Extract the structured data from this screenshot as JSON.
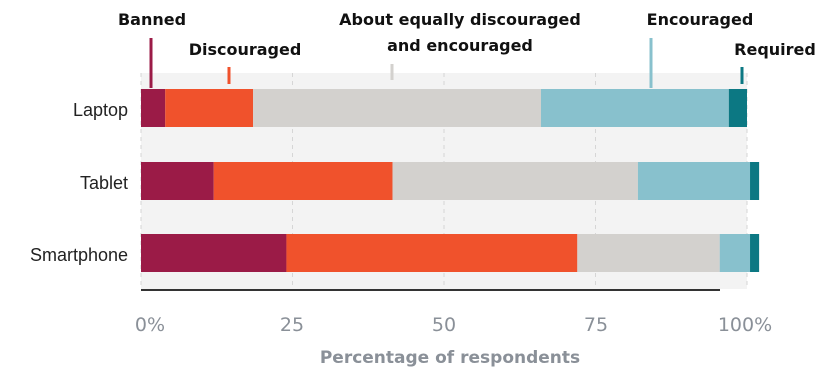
{
  "chart_data": {
    "type": "bar",
    "orientation": "horizontal",
    "stacked": true,
    "categories": [
      "Laptop",
      "Tablet",
      "Smartphone"
    ],
    "series": [
      {
        "name": "Banned",
        "color": "#9b1b47",
        "values": [
          4,
          12,
          24
        ]
      },
      {
        "name": "Discouraged",
        "color": "#f0522c",
        "values": [
          14.5,
          29.5,
          48
        ]
      },
      {
        "name": "About equally discouraged and encouraged",
        "color": "#d3d1ce",
        "values": [
          47.5,
          40.5,
          23.5
        ]
      },
      {
        "name": "Encouraged",
        "color": "#88c1cd",
        "values": [
          31,
          18.5,
          5
        ]
      },
      {
        "name": "Required",
        "color": "#0c7883",
        "values": [
          3,
          1.5,
          1.5
        ]
      }
    ],
    "xlabel": "Percentage of respondents",
    "xlim": [
      0,
      100
    ],
    "xticks": [
      0,
      25,
      50,
      75,
      100
    ],
    "xtick_labels": [
      "0%",
      "25",
      "50",
      "75",
      "100%"
    ],
    "grid": "vertical dashed",
    "legend_placement": "top, callout labels above bars",
    "legend": {
      "banned": "Banned",
      "discouraged": "Discouraged",
      "neutral_line1": "About equally discouraged",
      "neutral_line2": "and encouraged",
      "encouraged": "Encouraged",
      "required": "Required"
    }
  }
}
